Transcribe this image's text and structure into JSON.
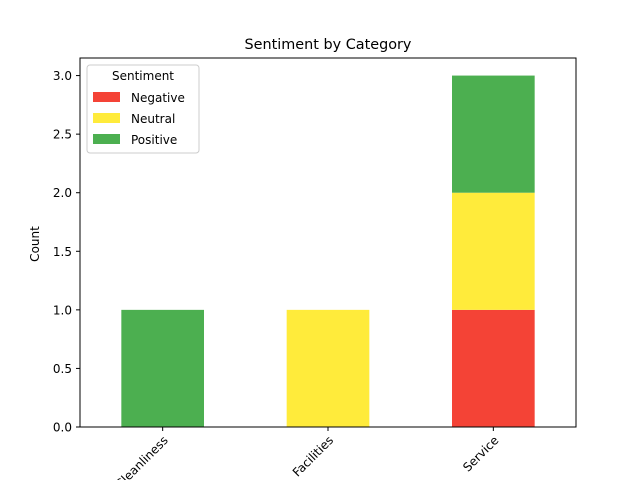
{
  "chart_data": {
    "type": "bar",
    "stacked": true,
    "title": "Sentiment by Category",
    "xlabel": "",
    "ylabel": "Count",
    "categories": [
      "Cleanliness",
      "Facilities",
      "Service"
    ],
    "series": [
      {
        "name": "Negative",
        "values": [
          0,
          0,
          1
        ],
        "color": "#f44336"
      },
      {
        "name": "Neutral",
        "values": [
          0,
          1,
          1
        ],
        "color": "#ffeb3b"
      },
      {
        "name": "Positive",
        "values": [
          1,
          0,
          1
        ],
        "color": "#4caf50"
      }
    ],
    "ylim": [
      0,
      3.15
    ],
    "yticks": [
      "0.0",
      "0.5",
      "1.0",
      "1.5",
      "2.0",
      "2.5",
      "3.0"
    ],
    "ytick_values": [
      0,
      0.5,
      1.0,
      1.5,
      2.0,
      2.5,
      3.0
    ],
    "legend": {
      "title": "Sentiment",
      "placement": "top-left"
    },
    "grid": false,
    "xtick_rotation_deg": 45
  }
}
